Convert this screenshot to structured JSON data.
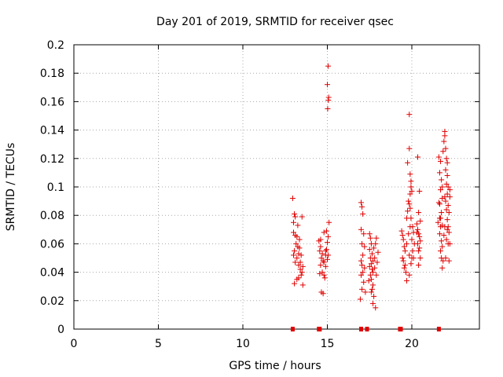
{
  "chart_data": {
    "type": "scatter",
    "title": "Day 201 of 2019, SRMTID for receiver qsec",
    "xlabel": "GPS time / hours",
    "ylabel": "SRMTID / TECUs",
    "xlim": [
      0,
      24
    ],
    "ylim": [
      0,
      0.2
    ],
    "xticks": [
      0,
      5,
      10,
      15,
      20
    ],
    "xtick_labels": [
      "0",
      "5",
      "10",
      "15",
      "20"
    ],
    "yticks": [
      0,
      0.02,
      0.04,
      0.06,
      0.08,
      0.1,
      0.12,
      0.14,
      0.16,
      0.18,
      0.2
    ],
    "ytick_labels": [
      "0",
      "0.02",
      "0.04",
      "0.06",
      "0.08",
      "0.1",
      "0.12",
      "0.14",
      "0.16",
      "0.18",
      "0.2"
    ],
    "grid": true,
    "series_color": "#e00000",
    "series": [
      {
        "name": "SRMTID",
        "points": [
          [
            12.95,
            0.092
          ],
          [
            13.0,
            0.075
          ],
          [
            13.05,
            0.081
          ],
          [
            13.1,
            0.079
          ],
          [
            13.0,
            0.068
          ],
          [
            13.1,
            0.066
          ],
          [
            13.2,
            0.065
          ],
          [
            13.15,
            0.06
          ],
          [
            13.25,
            0.058
          ],
          [
            13.05,
            0.055
          ],
          [
            13.3,
            0.053
          ],
          [
            13.35,
            0.057
          ],
          [
            13.2,
            0.05
          ],
          [
            13.1,
            0.047
          ],
          [
            13.3,
            0.045
          ],
          [
            13.4,
            0.042
          ],
          [
            13.5,
            0.04
          ],
          [
            13.45,
            0.038
          ],
          [
            13.2,
            0.035
          ],
          [
            13.05,
            0.032
          ],
          [
            13.4,
            0.047
          ],
          [
            13.55,
            0.044
          ],
          [
            13.25,
            0.073
          ],
          [
            13.5,
            0.079
          ],
          [
            13.35,
            0.063
          ],
          [
            13.45,
            0.052
          ],
          [
            13.0,
            0.052
          ],
          [
            13.3,
            0.036
          ],
          [
            13.55,
            0.031
          ],
          [
            14.5,
            0.062
          ],
          [
            14.6,
            0.058
          ],
          [
            14.55,
            0.055
          ],
          [
            14.7,
            0.053
          ],
          [
            14.65,
            0.05
          ],
          [
            14.75,
            0.048
          ],
          [
            14.8,
            0.047
          ],
          [
            14.9,
            0.052
          ],
          [
            14.95,
            0.056
          ],
          [
            15.0,
            0.061
          ],
          [
            15.05,
            0.065
          ],
          [
            14.6,
            0.045
          ],
          [
            14.7,
            0.04
          ],
          [
            14.8,
            0.038
          ],
          [
            14.85,
            0.036
          ],
          [
            14.9,
            0.044
          ],
          [
            15.0,
            0.049
          ],
          [
            14.65,
            0.026
          ],
          [
            14.75,
            0.025
          ],
          [
            14.55,
            0.039
          ],
          [
            14.8,
            0.068
          ],
          [
            14.95,
            0.069
          ],
          [
            15.1,
            0.075
          ],
          [
            14.6,
            0.063
          ],
          [
            14.9,
            0.055
          ],
          [
            15.05,
            0.052
          ],
          [
            15.05,
            0.185
          ],
          [
            15.0,
            0.172
          ],
          [
            15.08,
            0.163
          ],
          [
            15.06,
            0.161
          ],
          [
            15.02,
            0.155
          ],
          [
            17.0,
            0.089
          ],
          [
            17.05,
            0.086
          ],
          [
            17.1,
            0.081
          ],
          [
            17.0,
            0.07
          ],
          [
            17.15,
            0.067
          ],
          [
            17.05,
            0.06
          ],
          [
            17.2,
            0.058
          ],
          [
            17.1,
            0.052
          ],
          [
            17.0,
            0.048
          ],
          [
            17.05,
            0.045
          ],
          [
            17.1,
            0.04
          ],
          [
            17.0,
            0.038
          ],
          [
            17.15,
            0.033
          ],
          [
            17.05,
            0.028
          ],
          [
            16.95,
            0.021
          ],
          [
            17.2,
            0.043
          ],
          [
            17.25,
            0.026
          ],
          [
            17.5,
            0.067
          ],
          [
            17.55,
            0.064
          ],
          [
            17.6,
            0.06
          ],
          [
            17.5,
            0.056
          ],
          [
            17.65,
            0.053
          ],
          [
            17.55,
            0.05
          ],
          [
            17.7,
            0.048
          ],
          [
            17.6,
            0.046
          ],
          [
            17.5,
            0.044
          ],
          [
            17.65,
            0.042
          ],
          [
            17.7,
            0.04
          ],
          [
            17.55,
            0.038
          ],
          [
            17.6,
            0.035
          ],
          [
            17.7,
            0.031
          ],
          [
            17.65,
            0.028
          ],
          [
            17.6,
            0.026
          ],
          [
            17.75,
            0.023
          ],
          [
            17.7,
            0.018
          ],
          [
            17.85,
            0.015
          ],
          [
            17.8,
            0.05
          ],
          [
            17.85,
            0.06
          ],
          [
            17.9,
            0.064
          ],
          [
            17.95,
            0.047
          ],
          [
            17.8,
            0.043
          ],
          [
            17.9,
            0.038
          ],
          [
            18.0,
            0.054
          ],
          [
            17.45,
            0.034
          ],
          [
            17.75,
            0.057
          ],
          [
            19.4,
            0.069
          ],
          [
            19.45,
            0.066
          ],
          [
            19.5,
            0.063
          ],
          [
            19.55,
            0.058
          ],
          [
            19.6,
            0.055
          ],
          [
            19.45,
            0.05
          ],
          [
            19.5,
            0.048
          ],
          [
            19.6,
            0.045
          ],
          [
            19.55,
            0.043
          ],
          [
            19.65,
            0.04
          ],
          [
            19.7,
            0.078
          ],
          [
            19.75,
            0.083
          ],
          [
            19.8,
            0.09
          ],
          [
            19.85,
            0.088
          ],
          [
            19.9,
            0.095
          ],
          [
            19.95,
            0.1
          ],
          [
            20.0,
            0.097
          ],
          [
            19.9,
            0.085
          ],
          [
            19.95,
            0.078
          ],
          [
            20.05,
            0.072
          ],
          [
            20.1,
            0.068
          ],
          [
            20.0,
            0.063
          ],
          [
            20.15,
            0.06
          ],
          [
            20.05,
            0.055
          ],
          [
            19.85,
            0.052
          ],
          [
            19.7,
            0.06
          ],
          [
            19.8,
            0.067
          ],
          [
            19.9,
            0.072
          ],
          [
            19.75,
            0.117
          ],
          [
            19.85,
            0.127
          ],
          [
            19.95,
            0.104
          ],
          [
            19.85,
            0.151
          ],
          [
            19.9,
            0.109
          ],
          [
            20.0,
            0.05
          ],
          [
            19.95,
            0.046
          ],
          [
            19.7,
            0.034
          ],
          [
            19.85,
            0.038
          ],
          [
            20.1,
            0.05
          ],
          [
            20.3,
            0.074
          ],
          [
            20.35,
            0.07
          ],
          [
            20.4,
            0.067
          ],
          [
            20.45,
            0.065
          ],
          [
            20.5,
            0.062
          ],
          [
            20.35,
            0.06
          ],
          [
            20.45,
            0.057
          ],
          [
            20.4,
            0.055
          ],
          [
            20.5,
            0.05
          ],
          [
            20.3,
            0.068
          ],
          [
            20.4,
            0.082
          ],
          [
            20.35,
            0.121
          ],
          [
            20.45,
            0.097
          ],
          [
            20.5,
            0.076
          ],
          [
            20.4,
            0.045
          ],
          [
            21.6,
            0.121
          ],
          [
            21.7,
            0.118
          ],
          [
            21.65,
            0.11
          ],
          [
            21.75,
            0.105
          ],
          [
            21.7,
            0.098
          ],
          [
            21.8,
            0.092
          ],
          [
            21.65,
            0.088
          ],
          [
            21.75,
            0.082
          ],
          [
            21.7,
            0.078
          ],
          [
            21.8,
            0.073
          ],
          [
            21.65,
            0.067
          ],
          [
            21.75,
            0.062
          ],
          [
            21.8,
            0.058
          ],
          [
            21.7,
            0.055
          ],
          [
            21.75,
            0.05
          ],
          [
            21.85,
            0.048
          ],
          [
            21.8,
            0.043
          ],
          [
            21.65,
            0.078
          ],
          [
            21.7,
            0.072
          ],
          [
            21.8,
            0.1
          ],
          [
            21.85,
            0.125
          ],
          [
            21.9,
            0.132
          ],
          [
            21.95,
            0.139
          ],
          [
            21.95,
            0.136
          ],
          [
            22.0,
            0.127
          ],
          [
            22.05,
            0.12
          ],
          [
            22.0,
            0.112
          ],
          [
            22.1,
            0.108
          ],
          [
            22.05,
            0.102
          ],
          [
            22.15,
            0.1
          ],
          [
            22.1,
            0.095
          ],
          [
            22.0,
            0.09
          ],
          [
            22.15,
            0.087
          ],
          [
            22.05,
            0.084
          ],
          [
            22.2,
            0.082
          ],
          [
            22.1,
            0.077
          ],
          [
            22.15,
            0.072
          ],
          [
            22.2,
            0.068
          ],
          [
            22.05,
            0.063
          ],
          [
            22.15,
            0.06
          ],
          [
            22.25,
            0.06
          ],
          [
            22.2,
            0.048
          ],
          [
            22.0,
            0.05
          ],
          [
            21.95,
            0.072
          ],
          [
            22.1,
            0.07
          ],
          [
            22.25,
            0.093
          ],
          [
            22.25,
            0.098
          ],
          [
            21.55,
            0.075
          ],
          [
            21.6,
            0.089
          ],
          [
            21.9,
            0.066
          ],
          [
            22.1,
            0.117
          ],
          [
            21.95,
            0.093
          ]
        ]
      }
    ],
    "baseline_markers_x": [
      12.95,
      14.5,
      14.55,
      17.0,
      17.35,
      19.3,
      19.35,
      21.6
    ]
  }
}
